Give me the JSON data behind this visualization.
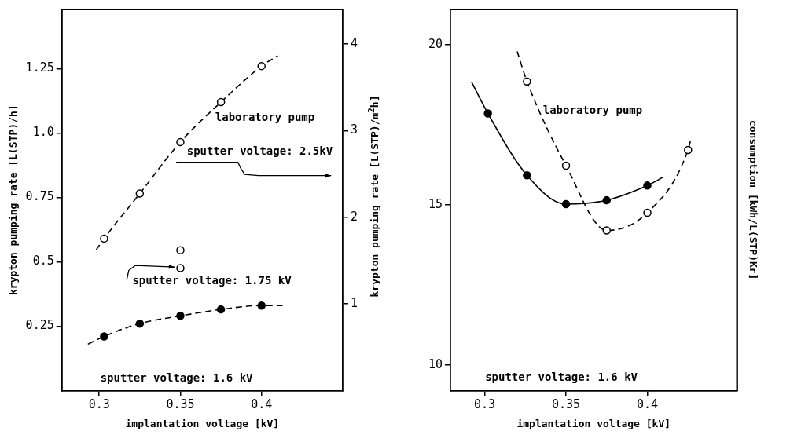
{
  "chart_data": [
    {
      "type": "scatter",
      "xlabel": "implantation voltage [kV]",
      "ylabel": "krypton pumping rate [L(STP)/h]",
      "y2label": "krypton pumping rate [L(STP)/m$^{2}$h]",
      "xlim": [
        0.277,
        0.45
      ],
      "xticks": [
        0.3,
        0.35,
        0.4
      ],
      "ylim": [
        0,
        1.48
      ],
      "yticks": [
        0.25,
        0.5,
        0.75,
        {
          "value": 1,
          "label": "1.0"
        },
        1.25
      ],
      "y2lim": [
        0,
        4.4
      ],
      "y2ticks": [
        1,
        2,
        3,
        4
      ],
      "grid": false,
      "legend": false,
      "series": [
        {
          "type": "line",
          "marker": "none",
          "line_style": "dashed",
          "color": "#000000",
          "x": [
            0.298,
            0.303,
            0.325,
            0.35,
            0.375,
            0.4,
            0.41
          ],
          "values": [
            0.545,
            0.59,
            0.765,
            0.965,
            1.12,
            1.26,
            1.3
          ]
        },
        {
          "type": "line",
          "marker": "none",
          "line_style": "dashed",
          "color": "#000000",
          "x": [
            0.293,
            0.303,
            0.325,
            0.35,
            0.375,
            0.4,
            0.413
          ],
          "values": [
            0.18,
            0.21,
            0.26,
            0.29,
            0.315,
            0.33,
            0.33
          ]
        },
        {
          "marker": "circle",
          "color": "#ffffff",
          "x": [
            0.303,
            0.325,
            0.35,
            0.375,
            0.4
          ],
          "values": [
            0.59,
            0.765,
            0.965,
            1.12,
            1.26
          ]
        },
        {
          "marker": "circle",
          "color": "#ffffff",
          "x": [
            0.35,
            0.35
          ],
          "values": [
            0.545,
            0.475
          ]
        },
        {
          "marker": "circle",
          "color": "#000000",
          "x": [
            0.303,
            0.325,
            0.35,
            0.375,
            0.4
          ],
          "values": [
            0.21,
            0.26,
            0.29,
            0.315,
            0.33
          ]
        }
      ],
      "annotations": [
        "laboratory pump",
        "sputter voltage: 2.5kV",
        "sputter voltage: 1.75 kV",
        "sputter voltage: 1.6 kV"
      ]
    },
    {
      "type": "scatter",
      "xlabel": "implantation voltage [kV]",
      "ylabel": "consumption [kWh/L(STP)Kr]",
      "xlim": [
        0.279,
        0.455
      ],
      "xticks": [
        0.3,
        0.35,
        {
          "value": 0.4,
          "label": "0.4"
        }
      ],
      "ylim": [
        9.2,
        21.1
      ],
      "yticks": [
        10,
        15,
        20
      ],
      "grid": false,
      "legend": false,
      "series": [
        {
          "type": "line",
          "marker": "none",
          "line_style": "solid",
          "color": "#000000",
          "x": [
            0.292,
            0.302,
            0.326,
            0.35,
            0.375,
            0.4,
            0.41
          ],
          "values": [
            18.83,
            17.85,
            15.92,
            15.02,
            15.14,
            15.6,
            15.87
          ]
        },
        {
          "type": "line",
          "marker": "none",
          "line_style": "dashed",
          "color": "#000000",
          "x": [
            0.32,
            0.326,
            0.35,
            0.375,
            0.4,
            0.425,
            0.427
          ],
          "values": [
            19.79,
            18.85,
            16.22,
            14.2,
            14.75,
            16.71,
            17.12
          ]
        },
        {
          "marker": "circle",
          "color": "#000000",
          "x": [
            0.302,
            0.326,
            0.35,
            0.375,
            0.4
          ],
          "values": [
            17.85,
            15.92,
            15.02,
            15.14,
            15.6
          ]
        },
        {
          "marker": "circle",
          "color": "#ffffff",
          "x": [
            0.326,
            0.35,
            0.375,
            0.4,
            0.425
          ],
          "values": [
            18.85,
            16.22,
            14.2,
            14.75,
            16.71
          ]
        }
      ],
      "annotations": [
        "laboratory pump",
        "sputter voltage: 1.6 kV"
      ]
    }
  ]
}
